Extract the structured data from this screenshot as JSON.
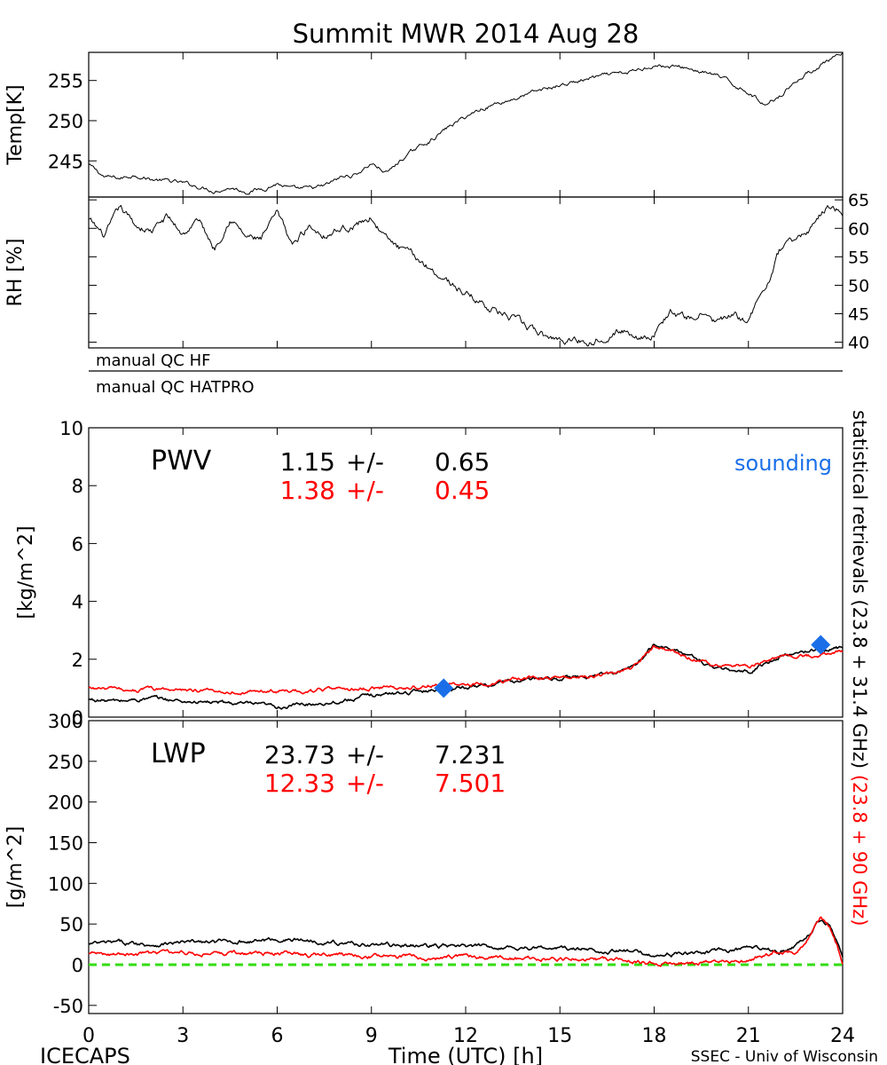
{
  "title": "Summit MWR 2014 Aug 28",
  "footer": {
    "left": "ICECAPS",
    "center": "Time (UTC) [h]",
    "right": "SSEC - Univ of Wisconsin"
  },
  "right_label": {
    "black_part": "statistical retrievals (23.8 + 31.4 GHz)",
    "red_part": "(23.8 + 90 GHz)"
  },
  "colors": {
    "black_series": "#000000",
    "red_series": "#ff0000",
    "sounding": "#1a6fe8",
    "zero_line": "#33dd11"
  },
  "qc_labels": [
    "manual QC HF",
    "manual QC HATPRO"
  ],
  "chart_data": [
    {
      "id": "temp",
      "type": "line",
      "ylabel": "Temp[K]",
      "xlim": [
        0,
        24
      ],
      "ylim": [
        240.5,
        258.5
      ],
      "yticks": [
        245,
        250,
        255
      ],
      "series": [
        {
          "x": [
            0,
            0.5,
            1,
            1.5,
            2,
            2.5,
            3,
            3.5,
            4,
            4.5,
            5,
            5.5,
            6,
            6.5,
            7,
            7.5,
            8,
            8.5,
            9,
            9.5,
            10,
            10.5,
            11,
            11.5,
            12,
            12.5,
            13,
            13.5,
            14,
            14.5,
            15,
            15.5,
            16,
            16.5,
            17,
            17.5,
            18,
            18.5,
            19,
            19.5,
            20,
            20.5,
            21,
            21.5,
            22,
            22.5,
            23,
            23.5,
            24
          ],
          "values": [
            244.5,
            243.0,
            242.8,
            243.3,
            242.7,
            242.5,
            242.2,
            241.8,
            241.3,
            241.7,
            241.2,
            241.5,
            242.2,
            241.4,
            241.5,
            241.8,
            242.9,
            243.3,
            244.7,
            243.5,
            245.3,
            246.7,
            247.9,
            249.3,
            250.5,
            251.5,
            252.2,
            252.7,
            253.3,
            253.9,
            254.4,
            254.8,
            255.3,
            255.6,
            255.8,
            256.3,
            257.0,
            256.7,
            256.6,
            256.1,
            255.6,
            254.5,
            253.6,
            252.0,
            253.2,
            254.9,
            256.2,
            257.4,
            258.1
          ]
        }
      ]
    },
    {
      "id": "rh",
      "type": "line",
      "ylabel": "RH [%]",
      "xlim": [
        0,
        24
      ],
      "ylim": [
        39,
        65.5
      ],
      "yticks": [
        40,
        45,
        50,
        55,
        60,
        65
      ],
      "series": [
        {
          "x": [
            0,
            0.5,
            1,
            1.5,
            2,
            2.5,
            3,
            3.5,
            4,
            4.5,
            5,
            5.5,
            6,
            6.5,
            7,
            7.5,
            8,
            8.5,
            9,
            9.5,
            10,
            10.5,
            11,
            11.5,
            12,
            12.5,
            13,
            13.5,
            14,
            14.5,
            15,
            15.5,
            16,
            16.5,
            17,
            17.5,
            18,
            18.5,
            19,
            19.5,
            20,
            20.5,
            21,
            21.5,
            22,
            22.5,
            23,
            23.5,
            24
          ],
          "values": [
            61.5,
            58.5,
            63.5,
            60.5,
            59.5,
            62.0,
            59.0,
            61.5,
            56.5,
            62.0,
            58.5,
            58.0,
            62.5,
            57.0,
            60.5,
            59.0,
            60.0,
            60.5,
            62.0,
            58.0,
            56.0,
            54.5,
            52.5,
            50.5,
            48.5,
            47.0,
            45.5,
            44.0,
            42.5,
            41.0,
            40.5,
            40.5,
            40.0,
            41.5,
            42.0,
            41.0,
            41.5,
            45.5,
            44.0,
            45.0,
            43.5,
            44.5,
            44.0,
            49.0,
            56.0,
            58.0,
            60.0,
            64.0,
            63.0
          ]
        }
      ]
    },
    {
      "id": "pwv",
      "type": "line",
      "panel_label": "PWV",
      "ylabel": "[kg/m^2]",
      "xlim": [
        0,
        24
      ],
      "ylim": [
        0,
        10
      ],
      "yticks": [
        0,
        2,
        4,
        6,
        8,
        10
      ],
      "stats": [
        {
          "value": "1.15",
          "pm": "+/-",
          "err": "0.65",
          "color": "#000000"
        },
        {
          "value": "1.38",
          "pm": "+/-",
          "err": "0.45",
          "color": "#ff0000"
        }
      ],
      "sounding_label": "sounding",
      "sounding_points": [
        {
          "x": 11.3,
          "y": 1.0
        },
        {
          "x": 23.3,
          "y": 2.5
        }
      ],
      "series": [
        {
          "color": "#000000",
          "x": [
            0,
            1,
            2,
            3,
            4,
            5,
            6,
            7,
            8,
            9,
            10,
            11,
            12,
            13,
            14,
            15,
            16,
            17,
            17.5,
            18,
            19,
            20,
            21,
            22,
            23,
            24
          ],
          "values": [
            0.6,
            0.55,
            0.65,
            0.55,
            0.5,
            0.45,
            0.35,
            0.45,
            0.55,
            0.75,
            0.85,
            0.95,
            1.05,
            1.15,
            1.3,
            1.35,
            1.4,
            1.6,
            1.9,
            2.5,
            2.2,
            1.65,
            1.55,
            2.1,
            2.3,
            2.4
          ]
        },
        {
          "color": "#ff0000",
          "x": [
            0,
            1,
            2,
            3,
            4,
            5,
            6,
            7,
            8,
            9,
            10,
            11,
            12,
            13,
            14,
            15,
            16,
            17,
            17.5,
            18,
            19,
            20,
            21,
            22,
            23,
            24
          ],
          "values": [
            1.0,
            0.95,
            0.95,
            0.95,
            0.9,
            0.9,
            0.9,
            0.9,
            0.95,
            1.0,
            1.0,
            1.1,
            1.15,
            1.2,
            1.35,
            1.4,
            1.45,
            1.55,
            1.85,
            2.45,
            2.1,
            1.8,
            1.75,
            2.1,
            2.1,
            2.25
          ]
        }
      ]
    },
    {
      "id": "lwp",
      "type": "line",
      "panel_label": "LWP",
      "ylabel": "[g/m^2]",
      "xlabel": "Time (UTC) [h]",
      "xlim": [
        0,
        24
      ],
      "ylim": [
        -60,
        300
      ],
      "yticks": [
        -50,
        0,
        50,
        100,
        150,
        200,
        250,
        300
      ],
      "xticks": [
        0,
        3,
        6,
        9,
        12,
        15,
        18,
        21,
        24
      ],
      "stats": [
        {
          "value": "23.73",
          "pm": "+/-",
          "err": "7.231",
          "color": "#000000"
        },
        {
          "value": "12.33",
          "pm": "+/-",
          "err": "7.501",
          "color": "#ff0000"
        }
      ],
      "zero_line": 0,
      "series": [
        {
          "color": "#000000",
          "x": [
            0,
            1,
            2,
            3,
            4,
            5,
            6,
            7,
            8,
            9,
            10,
            11,
            12,
            13,
            14,
            15,
            16,
            17,
            18,
            19,
            20,
            21,
            22,
            22.5,
            23,
            23.3,
            23.6,
            24
          ],
          "values": [
            25,
            27,
            25,
            27,
            28,
            29,
            31,
            30,
            27,
            25,
            24,
            23,
            22,
            22,
            21,
            20,
            18,
            17,
            12,
            14,
            16,
            20,
            17,
            22,
            38,
            55,
            50,
            8
          ]
        },
        {
          "color": "#ff0000",
          "x": [
            0,
            1,
            2,
            3,
            4,
            5,
            6,
            7,
            8,
            9,
            10,
            11,
            12,
            13,
            14,
            15,
            16,
            17,
            18,
            19,
            20,
            21,
            21.8,
            22.5,
            23,
            23.3,
            23.6,
            24
          ],
          "values": [
            13,
            14,
            14,
            15,
            15,
            14,
            14,
            12,
            11,
            10,
            10,
            9,
            9,
            8,
            8,
            7,
            7,
            5,
            2,
            3,
            3,
            4,
            16,
            14,
            40,
            60,
            45,
            3
          ]
        }
      ]
    }
  ]
}
